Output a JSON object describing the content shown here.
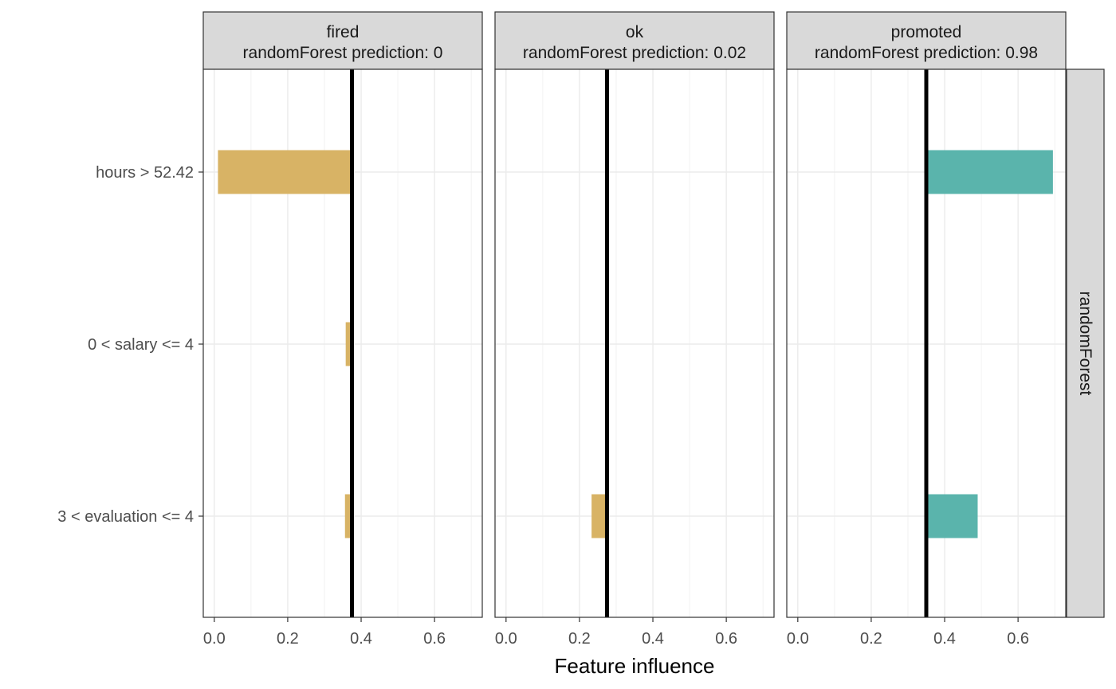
{
  "chart_data": {
    "type": "bar",
    "orientation": "horizontal",
    "xlabel": "Feature influence",
    "ylabel": "",
    "xlim": [
      -0.03,
      0.73
    ],
    "x_ticks": [
      0.0,
      0.2,
      0.4,
      0.6
    ],
    "x_tick_labels": [
      "0.0",
      "0.2",
      "0.4",
      "0.6"
    ],
    "grid": true,
    "legend": "none",
    "row_strip": "randomForest",
    "categories": [
      "hours > 52.42",
      "0 < salary <= 4",
      "3 < evaluation <= 4"
    ],
    "colors": {
      "negative": "#D8B365",
      "positive": "#5AB4AC",
      "baseline": "#000000",
      "strip_fill": "#D9D9D9"
    },
    "panels": [
      {
        "label": "fired",
        "subtitle": "randomForest prediction:  0",
        "baseline": 0.375,
        "bars": [
          {
            "category": "hours > 52.42",
            "start": 0.375,
            "end": 0.01,
            "sign": "negative"
          },
          {
            "category": "0 < salary <= 4",
            "start": 0.375,
            "end": 0.358,
            "sign": "negative"
          },
          {
            "category": "3 < evaluation <= 4",
            "start": 0.375,
            "end": 0.356,
            "sign": "negative"
          }
        ]
      },
      {
        "label": "ok",
        "subtitle": "randomForest prediction:  0.02",
        "baseline": 0.275,
        "bars": [
          {
            "category": "3 < evaluation <= 4",
            "start": 0.275,
            "end": 0.233,
            "sign": "negative"
          }
        ]
      },
      {
        "label": "promoted",
        "subtitle": "randomForest prediction:  0.98",
        "baseline": 0.35,
        "bars": [
          {
            "category": "hours > 52.42",
            "start": 0.35,
            "end": 0.695,
            "sign": "positive"
          },
          {
            "category": "3 < evaluation <= 4",
            "start": 0.35,
            "end": 0.49,
            "sign": "positive"
          }
        ]
      }
    ]
  }
}
